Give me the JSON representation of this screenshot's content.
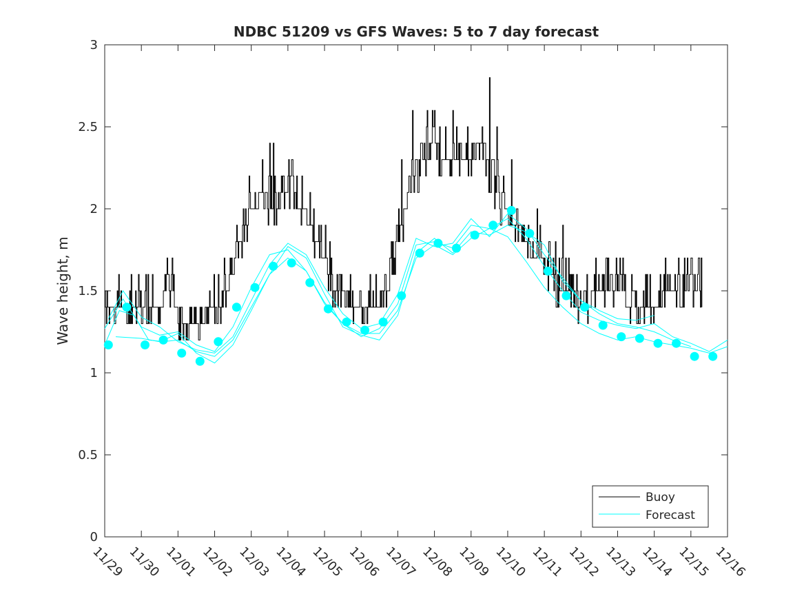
{
  "chart_data": {
    "type": "line",
    "title": "NDBC 51209 vs GFS Waves: 5 to 7 day forecast",
    "xlabel": "",
    "ylabel": "Wave height, m",
    "xlim": [
      0,
      17
    ],
    "ylim": [
      0,
      3
    ],
    "yticks": [
      0,
      0.5,
      1,
      1.5,
      2,
      2.5,
      3
    ],
    "ytick_labels": [
      "0",
      "0.5",
      "1",
      "1.5",
      "2",
      "2.5",
      "3"
    ],
    "xticks": [
      0,
      1,
      2,
      3,
      4,
      5,
      6,
      7,
      8,
      9,
      10,
      11,
      12,
      13,
      14,
      15,
      16,
      17
    ],
    "xtick_labels": [
      "11/29",
      "11/30",
      "12/01",
      "12/02",
      "12/03",
      "12/04",
      "12/05",
      "12/06",
      "12/07",
      "12/08",
      "12/09",
      "12/10",
      "12/11",
      "12/12",
      "12/13",
      "12/14",
      "12/15",
      "12/16"
    ],
    "legend": {
      "position": "bottom-right",
      "entries": [
        "Buoy",
        "Forecast"
      ]
    },
    "colors": {
      "buoy": "#000000",
      "forecast": "#00ffff",
      "markers": "#00ffff",
      "axes": "#262626"
    },
    "buoy": {
      "name": "Buoy",
      "x": [
        0,
        0.15,
        0.3,
        0.5,
        0.7,
        0.9,
        1.1,
        1.3,
        1.5,
        1.7,
        1.9,
        2.0,
        2.1,
        2.3,
        2.5,
        2.7,
        2.9,
        3.0,
        3.2,
        3.4,
        3.6,
        3.8,
        4.0,
        4.2,
        4.5,
        4.8,
        5.0,
        5.2,
        5.5,
        5.8,
        6.0,
        6.2,
        6.5,
        6.8,
        7.0,
        7.2,
        7.5,
        7.7,
        7.9,
        8.1,
        8.3,
        8.5,
        8.7,
        8.9,
        9.1,
        9.3,
        9.5,
        9.7,
        10.0,
        10.2,
        10.4,
        10.6,
        10.8,
        11.0,
        11.2,
        11.4,
        11.6,
        11.8,
        12.0,
        12.3,
        12.6,
        12.9,
        13.1,
        13.3,
        13.6,
        13.9,
        14.2,
        14.5,
        14.8,
        15.1,
        15.4,
        15.7,
        15.9,
        16.1,
        16.3
      ],
      "y": [
        1.35,
        1.42,
        1.38,
        1.4,
        1.37,
        1.36,
        1.38,
        1.4,
        1.44,
        1.5,
        1.45,
        1.35,
        1.3,
        1.32,
        1.35,
        1.33,
        1.36,
        1.38,
        1.45,
        1.55,
        1.7,
        1.9,
        2.0,
        1.95,
        2.0,
        2.05,
        2.15,
        2.05,
        1.95,
        1.8,
        1.7,
        1.55,
        1.45,
        1.38,
        1.35,
        1.36,
        1.38,
        1.5,
        1.7,
        1.9,
        2.1,
        2.2,
        2.3,
        2.35,
        2.35,
        2.3,
        2.35,
        2.3,
        2.35,
        2.4,
        2.3,
        2.15,
        2.0,
        1.95,
        1.9,
        1.85,
        1.75,
        1.7,
        1.65,
        1.55,
        1.5,
        1.45,
        1.42,
        1.45,
        1.5,
        1.5,
        1.45,
        1.42,
        1.45,
        1.42,
        1.5,
        1.48,
        1.5,
        1.55,
        1.5
      ],
      "spikes": [
        [
          4.3,
          2.25
        ],
        [
          4.5,
          2.38
        ],
        [
          4.6,
          2.4
        ],
        [
          5.1,
          2.3
        ],
        [
          6.7,
          1.6
        ],
        [
          8.1,
          2.3
        ],
        [
          8.4,
          2.6
        ],
        [
          8.8,
          2.62
        ],
        [
          9.0,
          2.6
        ],
        [
          9.3,
          2.5
        ],
        [
          9.5,
          2.55
        ],
        [
          10.3,
          2.5
        ],
        [
          10.5,
          2.8
        ],
        [
          10.7,
          2.52
        ],
        [
          11.1,
          2.3
        ],
        [
          11.8,
          2.0
        ],
        [
          12.5,
          1.9
        ],
        [
          15.3,
          1.7
        ],
        [
          16.0,
          1.7
        ],
        [
          16.2,
          1.72
        ]
      ]
    },
    "forecast": {
      "name": "Forecast",
      "lines": [
        {
          "x": [
            0.0,
            0.4,
            0.8,
            1.2,
            1.6,
            2.0,
            2.5,
            3.0,
            3.5,
            4.0,
            4.5,
            5.0,
            5.5,
            6.0,
            6.5,
            7.0,
            7.5,
            8.0,
            8.5,
            9.0,
            9.5,
            10.0,
            10.5,
            11.0,
            11.5,
            12.0,
            12.5,
            13.0,
            13.5,
            14.0,
            14.5,
            15.0,
            15.5,
            16.0,
            16.5,
            17.0
          ],
          "y": [
            1.17,
            1.38,
            1.35,
            1.2,
            1.19,
            1.2,
            1.13,
            1.1,
            1.2,
            1.4,
            1.6,
            1.7,
            1.62,
            1.42,
            1.3,
            1.24,
            1.24,
            1.38,
            1.7,
            1.78,
            1.72,
            1.82,
            1.88,
            1.83,
            1.68,
            1.52,
            1.4,
            1.3,
            1.24,
            1.2,
            1.22,
            1.19,
            1.17,
            1.15,
            1.12,
            1.16
          ]
        },
        {
          "x": [
            0.0,
            0.5,
            1.0,
            1.5,
            2.0,
            2.5,
            3.0,
            3.5,
            4.0,
            4.5,
            5.0,
            5.5,
            6.0,
            6.5,
            7.0,
            7.5,
            8.0,
            8.5,
            9.0,
            9.5,
            10.0,
            10.5,
            11.0,
            11.5,
            12.0,
            12.5,
            13.0,
            13.5,
            14.0,
            14.5,
            15.0,
            15.5,
            16.0,
            16.5,
            17.0
          ],
          "y": [
            1.27,
            1.45,
            1.28,
            1.23,
            1.25,
            1.17,
            1.13,
            1.28,
            1.52,
            1.72,
            1.75,
            1.62,
            1.43,
            1.3,
            1.22,
            1.27,
            1.42,
            1.78,
            1.8,
            1.76,
            1.9,
            1.88,
            1.94,
            1.82,
            1.65,
            1.5,
            1.37,
            1.32,
            1.29,
            1.27,
            1.3,
            1.22,
            1.18,
            1.13,
            1.2
          ]
        },
        {
          "x": [
            0.1,
            0.5,
            1.0,
            1.5,
            2.0,
            2.5,
            3.0,
            3.5,
            4.0,
            4.5,
            5.0,
            5.5,
            6.0,
            6.5,
            7.0,
            7.5,
            8.0,
            8.5,
            9.0,
            9.5,
            10.0,
            10.5,
            11.0,
            11.5,
            12.0,
            12.5,
            13.0,
            13.5,
            14.0,
            14.5,
            15.0
          ],
          "y": [
            1.33,
            1.5,
            1.34,
            1.28,
            1.19,
            1.14,
            1.12,
            1.22,
            1.44,
            1.66,
            1.79,
            1.72,
            1.52,
            1.36,
            1.27,
            1.3,
            1.48,
            1.82,
            1.77,
            1.79,
            1.94,
            1.83,
            1.97,
            1.88,
            1.72,
            1.58,
            1.44,
            1.38,
            1.33,
            1.32,
            1.35
          ]
        },
        {
          "x": [
            0.3,
            1.0,
            1.5,
            2.0,
            2.5,
            3.0,
            3.5,
            4.0,
            4.5,
            5.0,
            5.5,
            6.0,
            6.5,
            7.0,
            7.5,
            8.0,
            8.5,
            9.0,
            9.5,
            10.0,
            10.5,
            11.0,
            11.5,
            12.0,
            12.5,
            13.0,
            13.5,
            14.0,
            14.5,
            15.0,
            15.5,
            16.0
          ],
          "y": [
            1.22,
            1.21,
            1.19,
            1.24,
            1.12,
            1.06,
            1.17,
            1.38,
            1.6,
            1.77,
            1.7,
            1.48,
            1.28,
            1.23,
            1.2,
            1.35,
            1.73,
            1.82,
            1.73,
            1.86,
            1.84,
            1.9,
            1.86,
            1.78,
            1.56,
            1.44,
            1.36,
            1.3,
            1.28,
            1.25,
            1.2,
            1.16
          ]
        }
      ],
      "markers": {
        "x": [
          0.1,
          0.6,
          1.1,
          1.6,
          2.1,
          2.6,
          3.1,
          3.6,
          4.1,
          4.6,
          5.1,
          5.6,
          6.1,
          6.6,
          7.1,
          7.6,
          8.1,
          8.6,
          9.1,
          9.6,
          10.1,
          10.6,
          11.1,
          11.6,
          12.1,
          12.6,
          13.1,
          13.6,
          14.1,
          14.6,
          15.1,
          15.6,
          16.1,
          16.6
        ],
        "y": [
          1.17,
          1.4,
          1.17,
          1.2,
          1.12,
          1.07,
          1.19,
          1.4,
          1.52,
          1.65,
          1.67,
          1.55,
          1.39,
          1.31,
          1.26,
          1.31,
          1.47,
          1.73,
          1.79,
          1.76,
          1.84,
          1.9,
          1.99,
          1.85,
          1.62,
          1.47,
          1.4,
          1.29,
          1.22,
          1.21,
          1.18,
          1.18,
          1.1,
          1.1
        ]
      }
    }
  }
}
